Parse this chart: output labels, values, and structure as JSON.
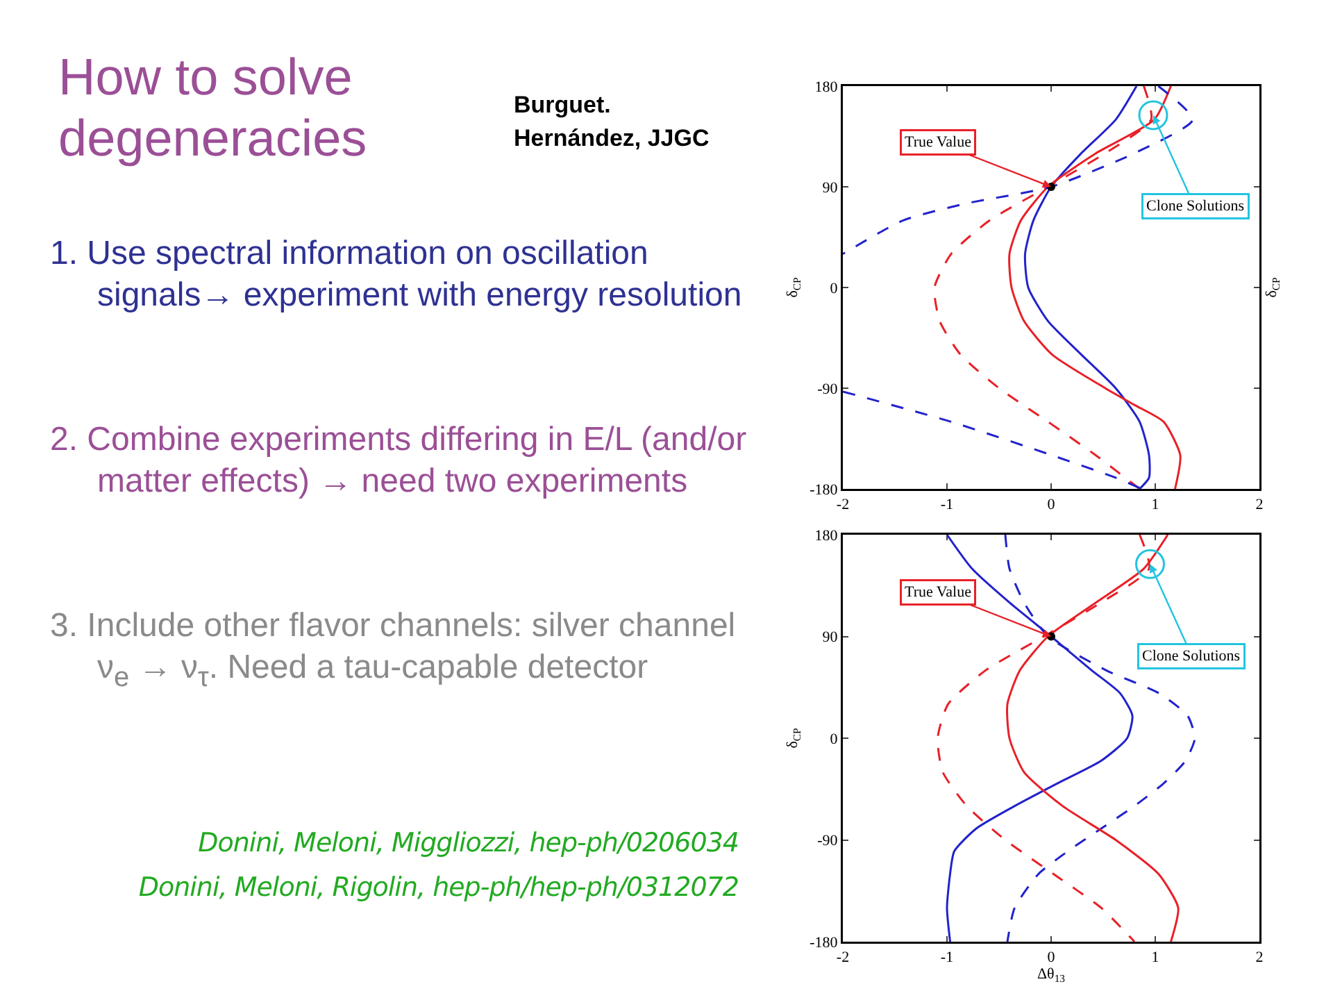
{
  "chart_data": [
    {
      "type": "other",
      "title": "How to solve degeneracies",
      "annotations": [
        "Burguet. Hernández, JJGC",
        "1. Use spectral information on oscillation signals→ experiment with energy resolution",
        "2. Combine experiments differing in E/L (and/or matter effects) → need two experiments",
        "3. Include other flavor channels: silver channel ν$_{e}$ → ν$_{τ}$. Need a tau-capable detector",
        "Donini, Meloni, Miggliozzi, hep-ph/0206034",
        "Donini, Meloni, Rigolin, hep-ph/hep-ph/0312072"
      ]
    },
    {
      "type": "line",
      "ylabel": "δ$_{CP}$",
      "y2label": "δ$_{CP}$",
      "xlim": [
        -2,
        2
      ],
      "xticks": [
        -2,
        -1,
        0,
        1,
        2
      ],
      "ylim": [
        -180,
        180
      ],
      "yticks": [
        -180,
        -90,
        0,
        90,
        180
      ],
      "grid": false,
      "series": [
        {
          "color": "#2222cc",
          "line_style": "solid",
          "x": [
            0.82,
            0.62,
            0.29,
            0.0,
            -0.17,
            -0.25,
            -0.22,
            -0.03,
            0.29,
            0.62,
            0.85,
            0.94,
            0.94,
            0.85
          ],
          "values": [
            180,
            150,
            120,
            90,
            60,
            30,
            0,
            -30,
            -60,
            -90,
            -120,
            -150,
            -170,
            -180
          ]
        },
        {
          "color": "#e82028",
          "line_style": "solid",
          "x": [
            1.15,
            0.99,
            0.43,
            -0.03,
            -0.29,
            -0.4,
            -0.38,
            -0.26,
            0.01,
            0.52,
            0.8,
            1.08,
            1.24,
            1.19
          ],
          "values": [
            180,
            150,
            120,
            90,
            60,
            30,
            0,
            -30,
            -60,
            -90,
            -105,
            -120,
            -150,
            -180
          ]
        },
        {
          "color": "#e82028",
          "line_style": "dashed",
          "x": [
            0.89,
            0.96,
            0.52,
            -0.03,
            -0.59,
            -0.96,
            -1.12,
            -1.07,
            -0.87,
            -0.5,
            -0.03,
            0.43,
            0.71,
            0.85
          ],
          "values": [
            180,
            150,
            120,
            90,
            60,
            30,
            0,
            -30,
            -60,
            -90,
            -120,
            -150,
            -170,
            -180
          ]
        },
        {
          "color": "#2222cc",
          "line_style": "dashed",
          "x": [
            1.03,
            1.36,
            0.8,
            0.0,
            -0.82,
            -1.42,
            -2.0,
            null,
            -2.0,
            -0.96,
            0.01,
            0.62,
            0.87
          ],
          "values": [
            180,
            150,
            120,
            90,
            75,
            60,
            30,
            null,
            -93,
            -120,
            -150,
            -170,
            -180
          ]
        },
        {
          "type": "scatter",
          "color": "#000000",
          "marker": "circle",
          "x": [
            0
          ],
          "values": [
            90
          ]
        }
      ],
      "annotations": [
        {
          "text": "True Value",
          "x": 0,
          "y": 90
        },
        {
          "text": "Clone Solutions",
          "x": 0.98,
          "y": 154
        }
      ]
    },
    {
      "type": "line",
      "xlabel": "Δθ$_{13}$",
      "ylabel": "δ$_{CP}$",
      "xlim": [
        -2,
        2
      ],
      "xticks": [
        -2,
        -1,
        0,
        1,
        2
      ],
      "ylim": [
        -180,
        180
      ],
      "yticks": [
        -180,
        -90,
        0,
        90,
        180
      ],
      "grid": false,
      "series": [
        {
          "color": "#2222cc",
          "line_style": "solid",
          "x": [
            -1.0,
            -0.76,
            -0.4,
            0.0,
            0.39,
            0.66,
            0.78,
            0.73,
            0.48,
            0.06,
            -0.35,
            -0.72,
            -0.93,
            -0.97,
            -1.0,
            -0.97
          ],
          "values": [
            180,
            150,
            120,
            90,
            60,
            40,
            20,
            0,
            -20,
            -40,
            -60,
            -80,
            -100,
            -120,
            -150,
            -180
          ]
        },
        {
          "color": "#2222cc",
          "line_style": "dashed",
          "x": [
            -0.44,
            -0.4,
            -0.26,
            -0.03,
            0.53,
            1.03,
            1.31,
            1.38,
            1.29,
            1.08,
            0.8,
            0.48,
            0.16,
            -0.12,
            -0.35,
            -0.42
          ],
          "values": [
            180,
            150,
            120,
            90,
            60,
            40,
            20,
            0,
            -20,
            -40,
            -60,
            -80,
            -100,
            -120,
            -150,
            -180
          ]
        },
        {
          "color": "#e82028",
          "line_style": "solid",
          "x": [
            1.12,
            0.89,
            0.43,
            -0.03,
            -0.3,
            -0.42,
            -0.4,
            -0.26,
            0.11,
            0.62,
            1.03,
            1.22,
            1.15
          ],
          "values": [
            180,
            150,
            120,
            90,
            60,
            30,
            0,
            -30,
            -60,
            -90,
            -120,
            -150,
            -180
          ]
        },
        {
          "color": "#e82028",
          "line_style": "dashed",
          "x": [
            0.85,
            0.94,
            0.48,
            -0.07,
            -0.63,
            -0.99,
            -1.09,
            -1.04,
            -0.81,
            -0.44,
            0.02,
            0.48,
            0.8
          ],
          "values": [
            180,
            150,
            120,
            90,
            60,
            30,
            0,
            -30,
            -60,
            -90,
            -120,
            -150,
            -180
          ]
        },
        {
          "type": "scatter",
          "color": "#000000",
          "marker": "circle",
          "x": [
            0
          ],
          "values": [
            90
          ]
        }
      ],
      "annotations": [
        {
          "text": "True Value",
          "x": 0,
          "y": 90
        },
        {
          "text": "Clone Solutions",
          "x": 0.95,
          "y": 154
        }
      ]
    }
  ]
}
